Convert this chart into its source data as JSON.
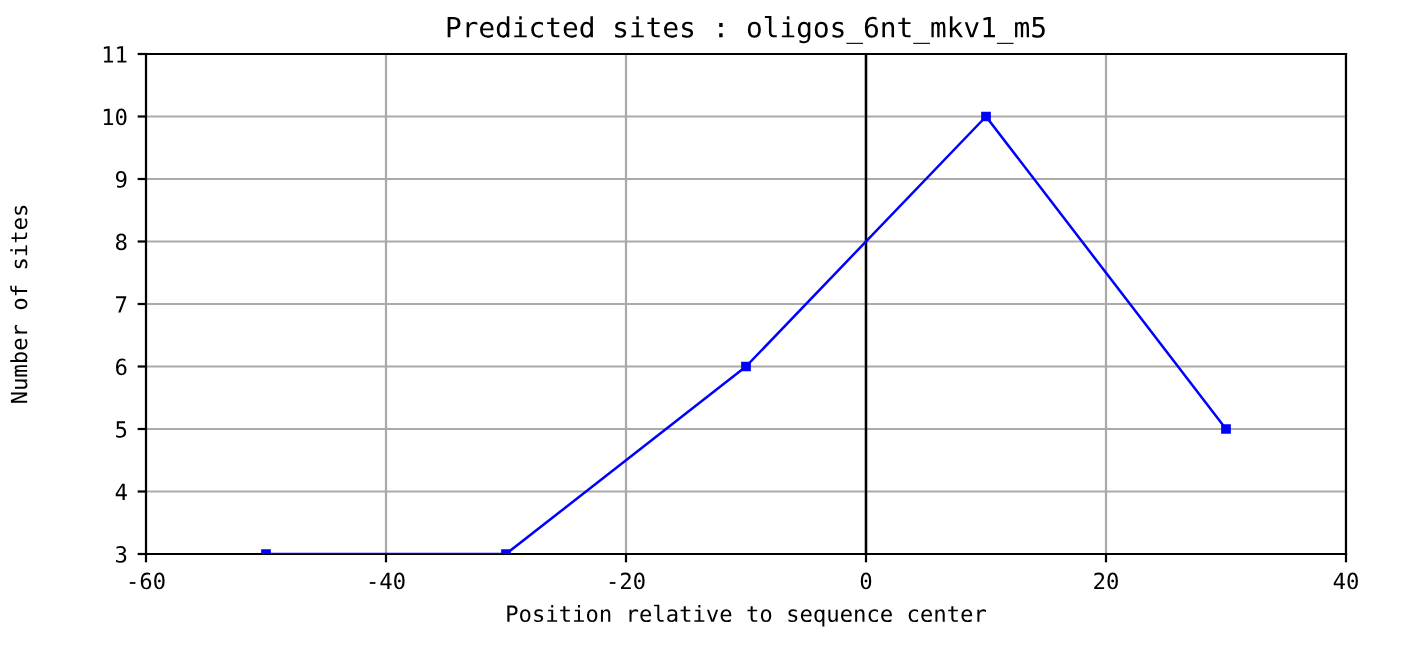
{
  "chart_data": {
    "type": "line",
    "title": "Predicted sites : oligos_6nt_mkv1_m5",
    "xlabel": "Position relative to sequence center",
    "ylabel": "Number of sites",
    "x": [
      -50,
      -30,
      -10,
      10,
      30
    ],
    "series": [
      {
        "color": "#0000ff",
        "values": [
          3,
          3,
          6,
          10,
          5
        ]
      }
    ],
    "xlim": [
      -60,
      40
    ],
    "xticks": [
      -60,
      -40,
      -20,
      0,
      20,
      40
    ],
    "ylim": [
      3,
      11
    ],
    "yticks": [
      3,
      4,
      5,
      6,
      7,
      8,
      9,
      10,
      11
    ],
    "grid": true,
    "marker": "square",
    "line_style": "solid",
    "ref_lines": [
      {
        "axis": "x",
        "value": 0,
        "color": "#000000"
      }
    ]
  }
}
